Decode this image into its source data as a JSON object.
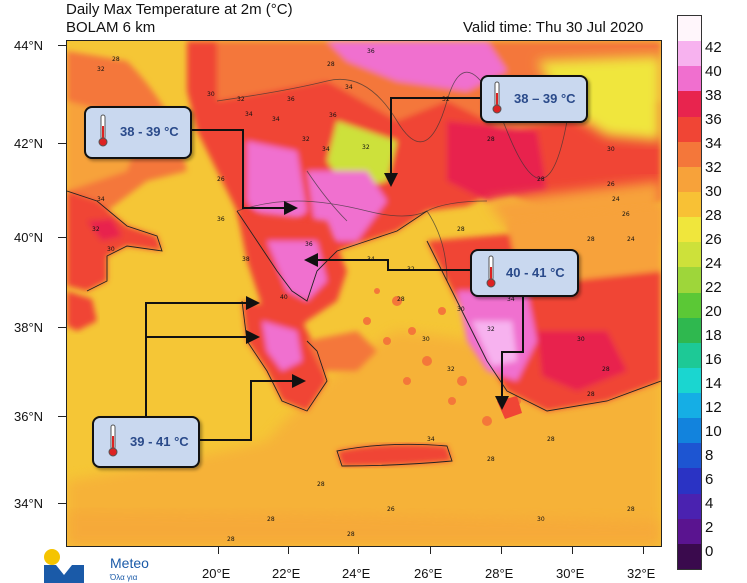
{
  "header": {
    "title": "Daily Max Temperature at 2m (°C)",
    "model": "BOLAM 6 km",
    "valid_time": "Valid time: Thu 30 Jul 2020"
  },
  "lat_labels": [
    "44°N",
    "42°N",
    "40°N",
    "38°N",
    "36°N",
    "34°N"
  ],
  "lon_labels": [
    "20°E",
    "22°E",
    "24°E",
    "26°E",
    "28°E",
    "30°E",
    "32°E"
  ],
  "colorbar": {
    "labels": [
      "42",
      "40",
      "38",
      "36",
      "34",
      "32",
      "30",
      "28",
      "26",
      "24",
      "22",
      "20",
      "18",
      "16",
      "14",
      "12",
      "10",
      "8",
      "6",
      "4",
      "2",
      "0"
    ],
    "colors": [
      "#fff6fb",
      "#f7b2ef",
      "#f06fcf",
      "#e8244e",
      "#f04535",
      "#f4773a",
      "#f7a23a",
      "#f8c135",
      "#f0e63c",
      "#cde13a",
      "#9ed63a",
      "#5bc836",
      "#2fb84f",
      "#1dc996",
      "#1ad6d0",
      "#15aee5",
      "#1283dd",
      "#1d55d2",
      "#2a33c4",
      "#4a22b0",
      "#5a1490",
      "#3a0a4d"
    ]
  },
  "callouts": {
    "north_west": {
      "text": "38 - 39 °C"
    },
    "north_east": {
      "text": "38 – 39 °C"
    },
    "east": {
      "text": "40 - 41 °C"
    },
    "south_west": {
      "text": "39 - 41 °C"
    }
  },
  "map_labels": [
    "36",
    "34",
    "36",
    "32",
    "28",
    "30",
    "32",
    "34",
    "34",
    "36",
    "32",
    "28",
    "34",
    "32",
    "32",
    "30",
    "28",
    "26",
    "26",
    "28",
    "30",
    "24",
    "24",
    "30",
    "32",
    "34",
    "36",
    "38",
    "40",
    "36",
    "34",
    "32",
    "30",
    "32",
    "34",
    "30",
    "28",
    "28",
    "28",
    "28",
    "28",
    "30",
    "32",
    "34",
    "28",
    "26",
    "28",
    "28",
    "28",
    "30",
    "28",
    "26",
    "28",
    "28",
    "28"
  ],
  "logo": {
    "name": "Meteo",
    "tagline": "Όλα για"
  }
}
